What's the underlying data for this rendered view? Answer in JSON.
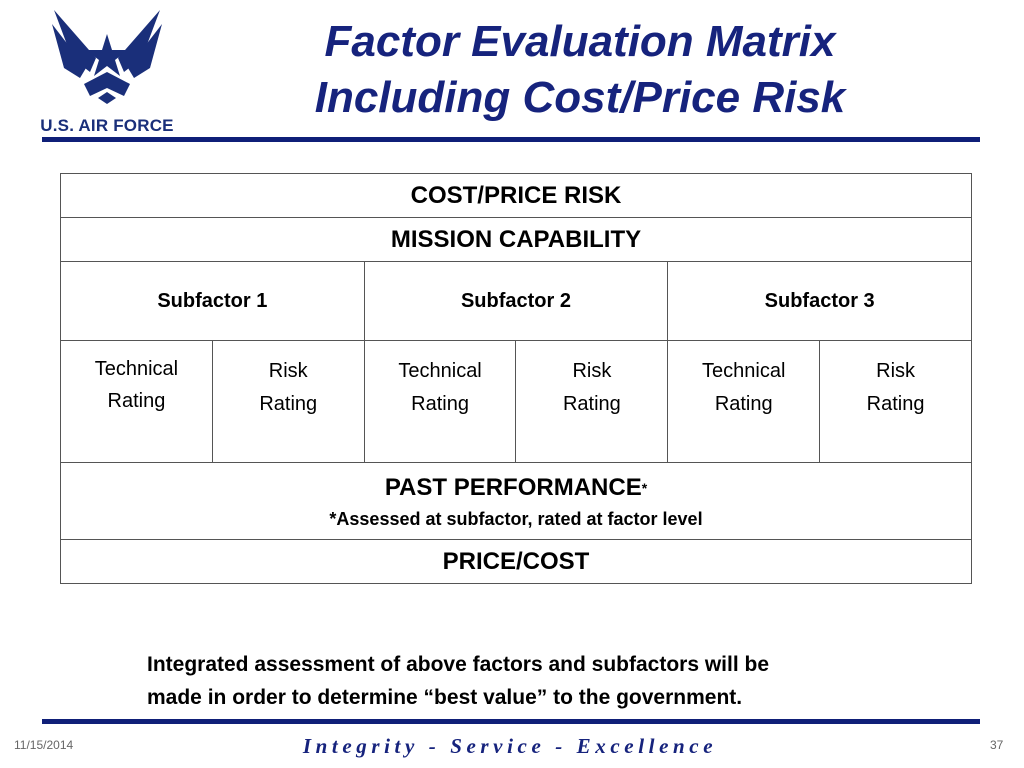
{
  "header": {
    "logo_text": "U.S. AIR FORCE",
    "title_line1": "Factor Evaluation Matrix",
    "title_line2": "Including Cost/Price Risk"
  },
  "matrix": {
    "cost_price_risk": "COST/PRICE RISK",
    "mission_capability": "MISSION CAPABILITY",
    "subfactors": [
      "Subfactor 1",
      "Subfactor 2",
      "Subfactor 3"
    ],
    "ratings": [
      {
        "line1": "Technical",
        "line2": "Rating"
      },
      {
        "line1": "Risk",
        "line2": "Rating"
      },
      {
        "line1": "Technical",
        "line2": "Rating"
      },
      {
        "line1": "Risk",
        "line2": "Rating"
      },
      {
        "line1": "Technical",
        "line2": "Rating"
      },
      {
        "line1": "Risk",
        "line2": "Rating"
      }
    ],
    "past_performance": "PAST PERFORMANCE",
    "past_performance_marker": "*",
    "past_performance_note": "*Assessed at subfactor, rated at factor level",
    "price_cost": "PRICE/COST"
  },
  "summary": {
    "line1": "Integrated assessment of above factors and subfactors will be",
    "line2": "made in order to determine “best value” to the government."
  },
  "footer": {
    "date": "11/15/2014",
    "motto": "Integrity - Service - Excellence",
    "page_number": "37"
  },
  "colors": {
    "brand_blue": "#16237d",
    "rule_blue": "#0f1f78"
  }
}
